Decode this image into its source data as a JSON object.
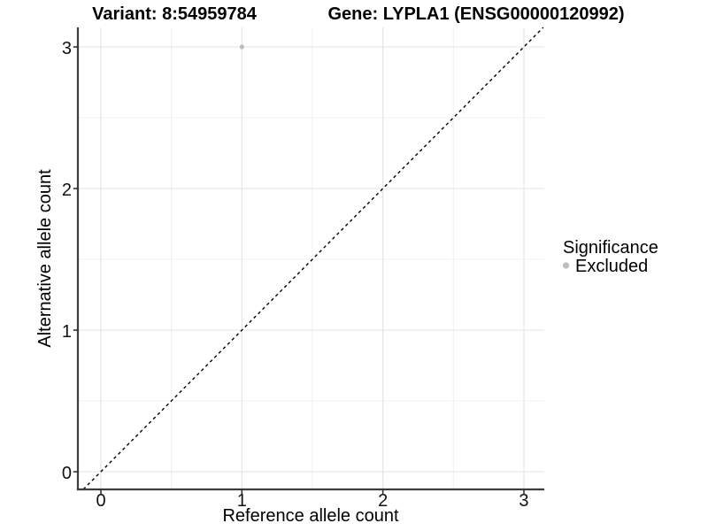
{
  "header": {
    "variant_title": "Variant: 8:54959784",
    "gene_title": "Gene: LYPLA1 (ENSG00000120992)"
  },
  "axes": {
    "x": {
      "label": "Reference allele count"
    },
    "y": {
      "label": "Alternative allele count"
    }
  },
  "legend": {
    "title": "Significance",
    "items": [
      {
        "label": "Excluded",
        "color": "#bcbcbc"
      }
    ]
  },
  "colors": {
    "background": "#ffffff",
    "grid_major": "#e3e3e3",
    "grid_minor": "#f0f0f0",
    "axis_line": "#3c3c3c",
    "tick_mark": "#333333",
    "reference_line": "#000000",
    "point": "#bcbcbc"
  },
  "chart_data": {
    "type": "scatter",
    "title": "Variant: 8:54959784 — Gene: LYPLA1 (ENSG00000120992)",
    "xlabel": "Reference allele count",
    "ylabel": "Alternative allele count",
    "xlim": [
      -0.16,
      3.14
    ],
    "ylim": [
      -0.13,
      3.14
    ],
    "x_ticks": [
      0,
      1,
      2,
      3
    ],
    "y_ticks": [
      0,
      1,
      2,
      3
    ],
    "grid": {
      "major": true,
      "minor": true
    },
    "legend_position": "right",
    "series": [
      {
        "name": "Excluded",
        "color": "#bcbcbc",
        "point_radius": 2.6,
        "points": [
          [
            1,
            3
          ]
        ]
      }
    ],
    "reference_line": {
      "equation": "y = x",
      "style": "dashed",
      "color": "#000000",
      "dash": "3.5,3.5"
    }
  }
}
